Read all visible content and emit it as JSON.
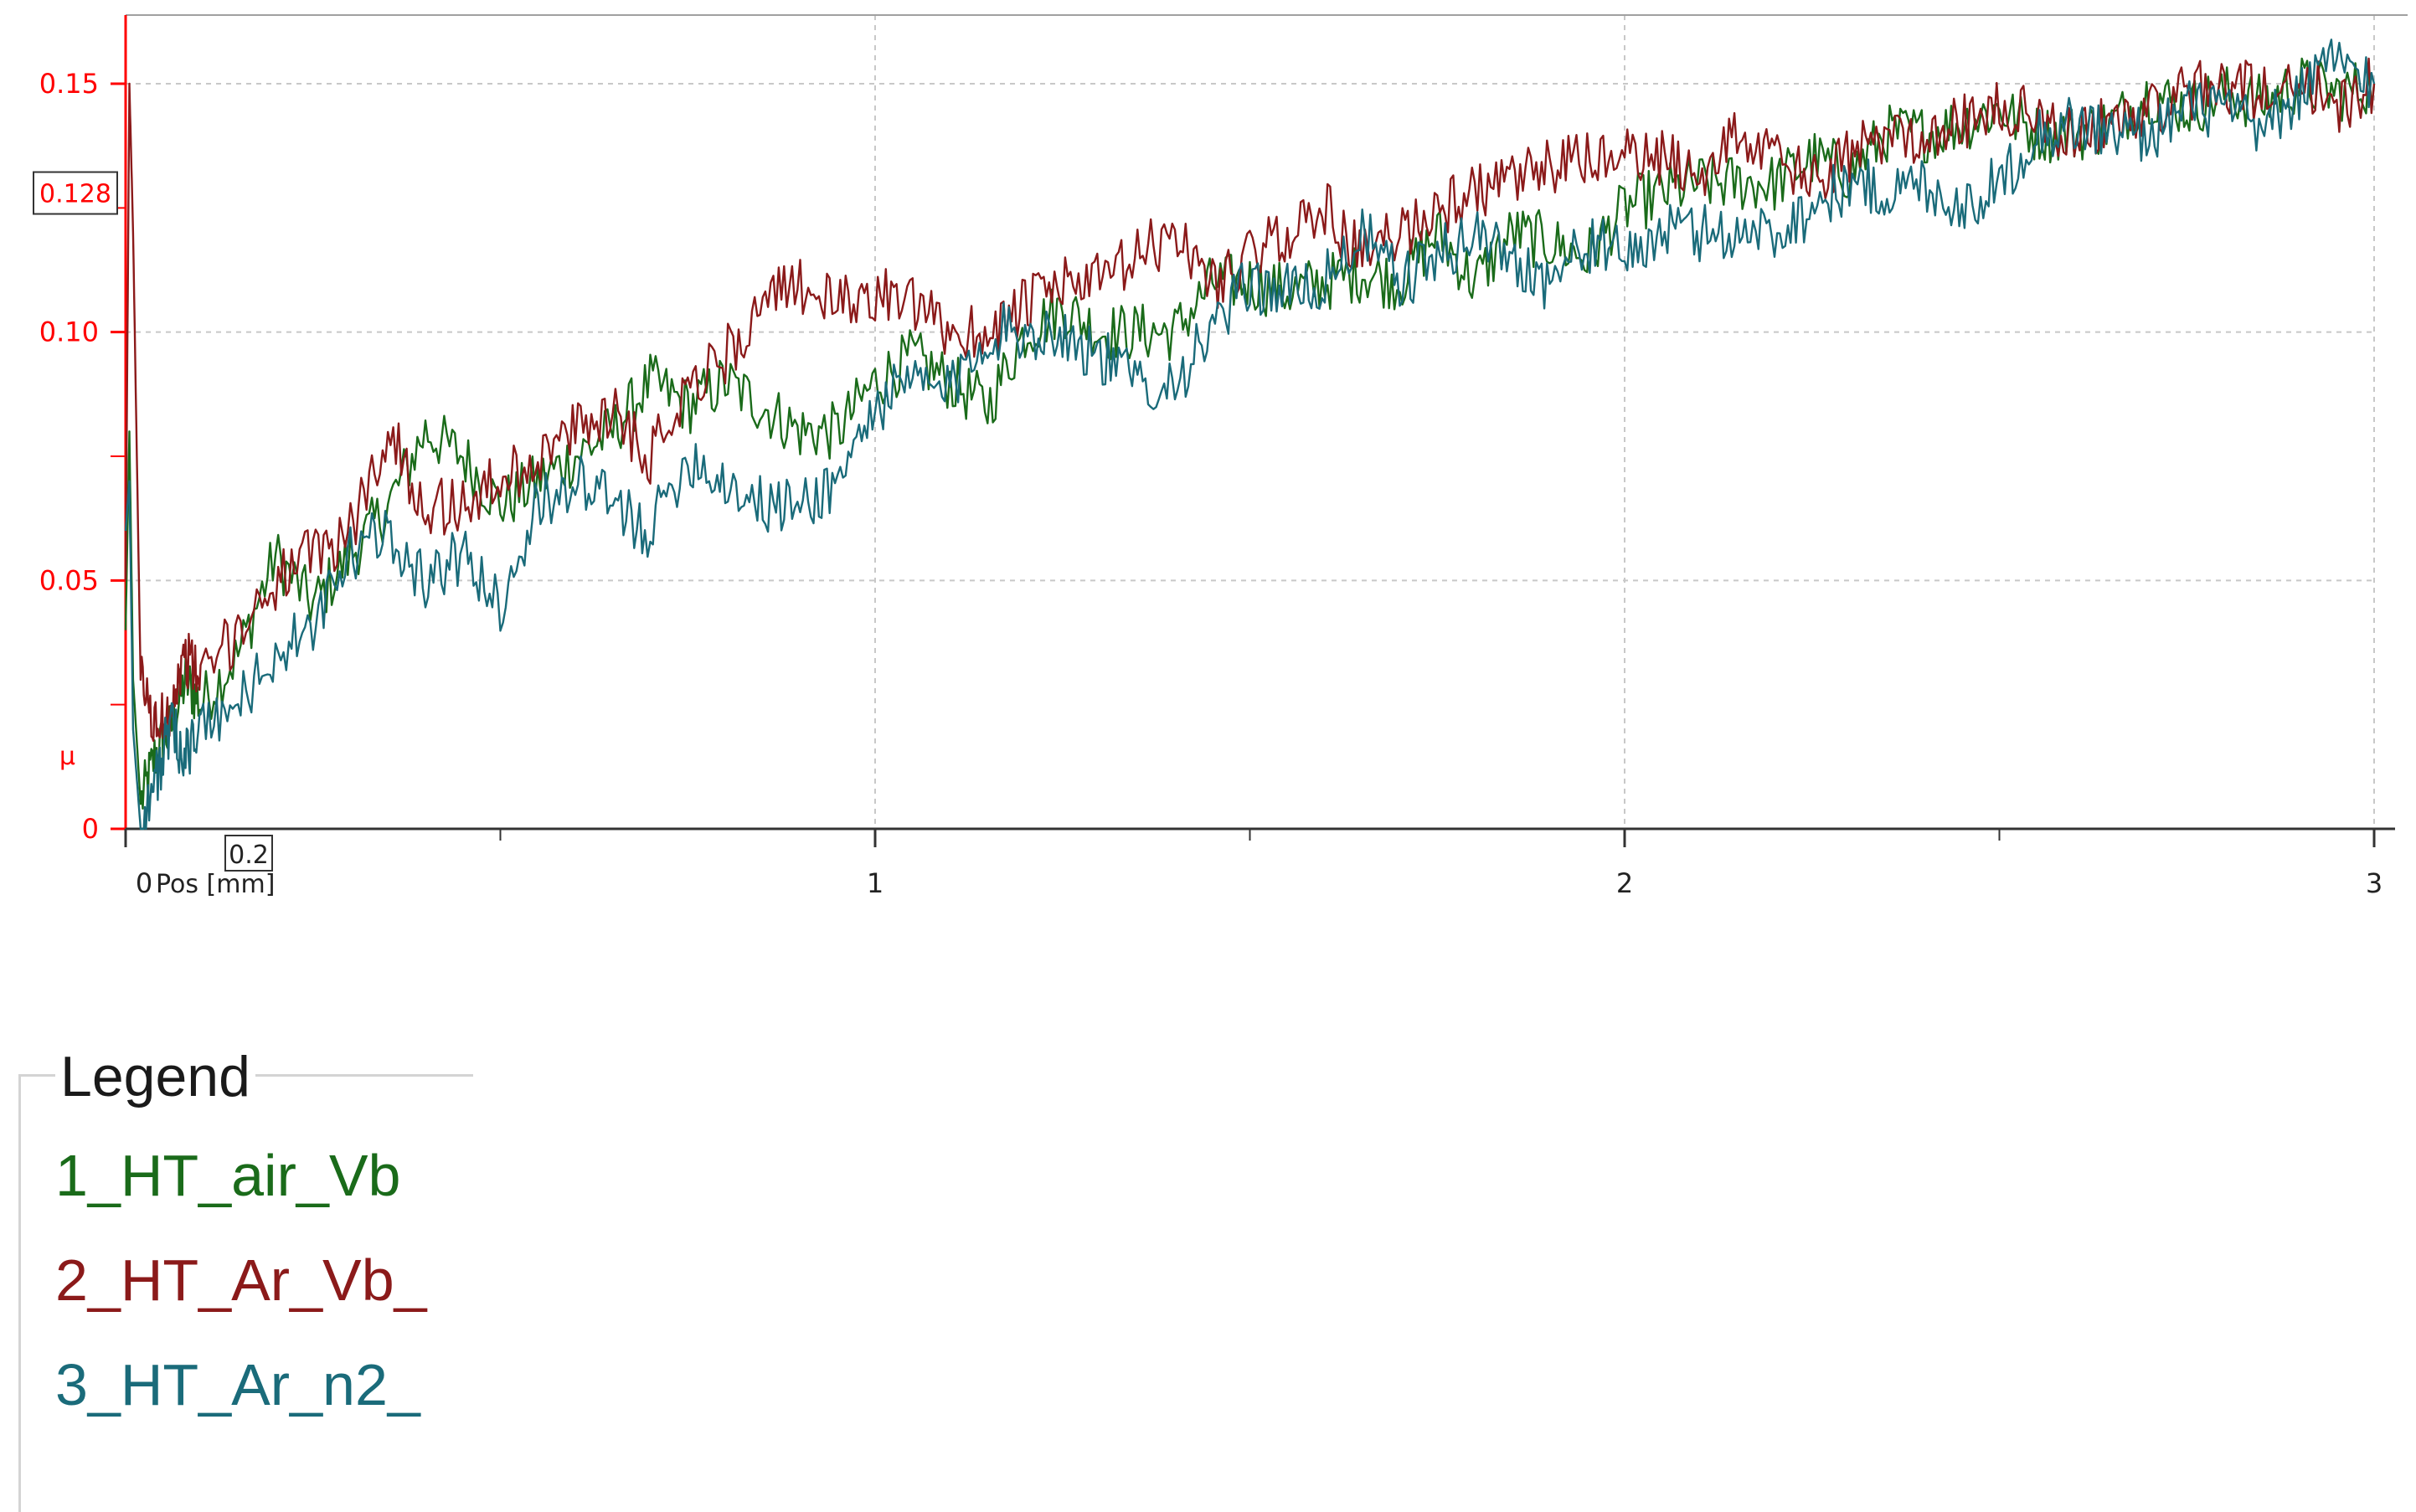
{
  "chart_data": {
    "type": "line",
    "xlabel": "Pos [mm]",
    "ylabel": "µ",
    "xlim": [
      0,
      3
    ],
    "ylim": [
      0,
      0.15
    ],
    "x_ticks": [
      "0",
      "1",
      "2",
      "3"
    ],
    "y_ticks": [
      "0",
      "0.05",
      "0.10",
      "0.15"
    ],
    "cursor_readout": {
      "x": "0.2",
      "y": "0.128"
    },
    "grid": true,
    "legend_title": "Legend",
    "legend_position": "below",
    "colors": {
      "axis": "#ff0000",
      "grid": "#c8c8c8"
    },
    "series": [
      {
        "name": "1_HT_air_Vb",
        "color": "#1a6b1a",
        "x": [
          0,
          0.005,
          0.01,
          0.02,
          0.04,
          0.06,
          0.08,
          0.1,
          0.15,
          0.2,
          0.25,
          0.3,
          0.35,
          0.4,
          0.45,
          0.5,
          0.55,
          0.6,
          0.65,
          0.7,
          0.75,
          0.8,
          0.85,
          0.9,
          0.95,
          1.0,
          1.05,
          1.1,
          1.15,
          1.2,
          1.25,
          1.3,
          1.35,
          1.4,
          1.45,
          1.5,
          1.55,
          1.6,
          1.65,
          1.7,
          1.75,
          1.8,
          1.85,
          1.9,
          1.95,
          2.0,
          2.05,
          2.1,
          2.15,
          2.2,
          2.25,
          2.3,
          2.35,
          2.4,
          2.45,
          2.5,
          2.55,
          2.6,
          2.65,
          2.7,
          2.75,
          2.8,
          2.85,
          2.9,
          2.95,
          3.0
        ],
        "y": [
          0.04,
          0.08,
          0.03,
          0.005,
          0.015,
          0.02,
          0.03,
          0.025,
          0.035,
          0.055,
          0.045,
          0.055,
          0.065,
          0.08,
          0.075,
          0.065,
          0.07,
          0.075,
          0.08,
          0.09,
          0.085,
          0.09,
          0.085,
          0.08,
          0.08,
          0.09,
          0.095,
          0.09,
          0.085,
          0.1,
          0.105,
          0.1,
          0.1,
          0.1,
          0.11,
          0.11,
          0.108,
          0.11,
          0.112,
          0.11,
          0.12,
          0.11,
          0.12,
          0.118,
          0.115,
          0.125,
          0.128,
          0.13,
          0.13,
          0.13,
          0.135,
          0.132,
          0.14,
          0.14,
          0.142,
          0.145,
          0.14,
          0.14,
          0.142,
          0.148,
          0.145,
          0.148,
          0.146,
          0.15,
          0.148,
          0.15
        ]
      },
      {
        "name": "2_HT_Ar_Vb_",
        "color": "#8b1a1a",
        "x": [
          0,
          0.005,
          0.01,
          0.02,
          0.04,
          0.06,
          0.08,
          0.1,
          0.15,
          0.2,
          0.25,
          0.3,
          0.35,
          0.4,
          0.45,
          0.5,
          0.55,
          0.6,
          0.65,
          0.7,
          0.75,
          0.8,
          0.85,
          0.9,
          0.95,
          1.0,
          1.05,
          1.1,
          1.15,
          1.2,
          1.25,
          1.3,
          1.35,
          1.4,
          1.45,
          1.5,
          1.55,
          1.6,
          1.65,
          1.7,
          1.75,
          1.8,
          1.85,
          1.9,
          1.95,
          2.0,
          2.05,
          2.1,
          2.15,
          2.2,
          2.25,
          2.3,
          2.35,
          2.4,
          2.45,
          2.5,
          2.55,
          2.6,
          2.65,
          2.7,
          2.75,
          2.8,
          2.85,
          2.9,
          2.95,
          3.0
        ],
        "y": [
          0.05,
          0.15,
          0.12,
          0.03,
          0.02,
          0.025,
          0.035,
          0.03,
          0.04,
          0.05,
          0.055,
          0.06,
          0.08,
          0.065,
          0.065,
          0.07,
          0.075,
          0.08,
          0.085,
          0.075,
          0.09,
          0.095,
          0.105,
          0.11,
          0.105,
          0.108,
          0.105,
          0.1,
          0.1,
          0.105,
          0.11,
          0.11,
          0.115,
          0.12,
          0.11,
          0.115,
          0.12,
          0.125,
          0.115,
          0.12,
          0.125,
          0.128,
          0.13,
          0.133,
          0.135,
          0.135,
          0.135,
          0.132,
          0.14,
          0.135,
          0.13,
          0.135,
          0.14,
          0.14,
          0.142,
          0.145,
          0.143,
          0.14,
          0.142,
          0.145,
          0.148,
          0.15,
          0.148,
          0.152,
          0.145,
          0.15
        ]
      },
      {
        "name": "3_HT_Ar_n2_",
        "color": "#1a6b7a",
        "x": [
          0,
          0.005,
          0.01,
          0.02,
          0.04,
          0.06,
          0.08,
          0.1,
          0.15,
          0.2,
          0.25,
          0.3,
          0.35,
          0.4,
          0.45,
          0.5,
          0.55,
          0.6,
          0.65,
          0.7,
          0.75,
          0.8,
          0.85,
          0.9,
          0.95,
          1.0,
          1.05,
          1.1,
          1.15,
          1.2,
          1.25,
          1.3,
          1.35,
          1.4,
          1.45,
          1.5,
          1.55,
          1.6,
          1.65,
          1.7,
          1.75,
          1.8,
          1.85,
          1.9,
          1.95,
          2.0,
          2.05,
          2.1,
          2.15,
          2.2,
          2.25,
          2.3,
          2.35,
          2.4,
          2.45,
          2.5,
          2.55,
          2.6,
          2.65,
          2.7,
          2.75,
          2.8,
          2.85,
          2.9,
          2.95,
          3.0
        ],
        "y": [
          0.06,
          0.07,
          0.02,
          0.0,
          0.01,
          0.02,
          0.015,
          0.02,
          0.025,
          0.035,
          0.04,
          0.055,
          0.06,
          0.05,
          0.055,
          0.045,
          0.065,
          0.07,
          0.065,
          0.06,
          0.075,
          0.07,
          0.065,
          0.065,
          0.07,
          0.085,
          0.09,
          0.088,
          0.1,
          0.1,
          0.1,
          0.095,
          0.09,
          0.09,
          0.1,
          0.11,
          0.108,
          0.11,
          0.12,
          0.11,
          0.115,
          0.12,
          0.115,
          0.11,
          0.118,
          0.115,
          0.12,
          0.12,
          0.12,
          0.12,
          0.125,
          0.13,
          0.128,
          0.13,
          0.125,
          0.13,
          0.14,
          0.142,
          0.14,
          0.14,
          0.145,
          0.145,
          0.14,
          0.148,
          0.155,
          0.15
        ]
      }
    ]
  }
}
